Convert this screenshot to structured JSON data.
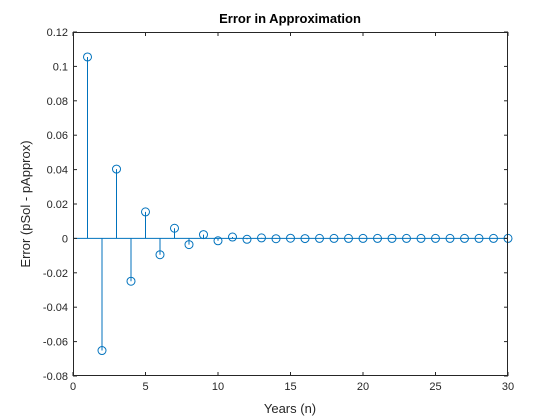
{
  "chart_data": {
    "type": "stem",
    "title": "Error in Approximation",
    "xlabel": "Years (n)",
    "ylabel": "Error (pSol - pApprox)",
    "xlim": [
      0,
      30
    ],
    "ylim": [
      -0.08,
      0.12
    ],
    "xticks": [
      0,
      5,
      10,
      15,
      20,
      25,
      30
    ],
    "xtick_labels": [
      "0",
      "5",
      "10",
      "15",
      "20",
      "25",
      "30"
    ],
    "yticks": [
      -0.08,
      -0.06,
      -0.04,
      -0.02,
      0,
      0.02,
      0.04,
      0.06,
      0.08,
      0.1,
      0.12
    ],
    "ytick_labels": [
      "-0.08",
      "-0.06",
      "-0.04",
      "-0.02",
      "0",
      "0.02",
      "0.04",
      "0.06",
      "0.08",
      "0.1",
      "0.12"
    ],
    "grid": false,
    "box": true,
    "marker": "circle",
    "series_color": "#0072BD",
    "x": [
      1,
      2,
      3,
      4,
      5,
      6,
      7,
      8,
      9,
      10,
      11,
      12,
      13,
      14,
      15,
      16,
      17,
      18,
      19,
      20,
      21,
      22,
      23,
      24,
      25,
      26,
      27,
      28,
      29,
      30
    ],
    "y": [
      0.1055,
      -0.0652,
      0.0403,
      -0.0249,
      0.0154,
      -0.0095,
      0.0059,
      -0.0036,
      0.0022,
      -0.0014,
      0.0008,
      -0.0005,
      0.0003,
      -0.0002,
      0.0001,
      -0.0001,
      0.0,
      0.0,
      0.0,
      0.0,
      0.0,
      0.0,
      0.0,
      0.0,
      0.0,
      0.0,
      0.0,
      0.0,
      0.0,
      0.0
    ]
  }
}
